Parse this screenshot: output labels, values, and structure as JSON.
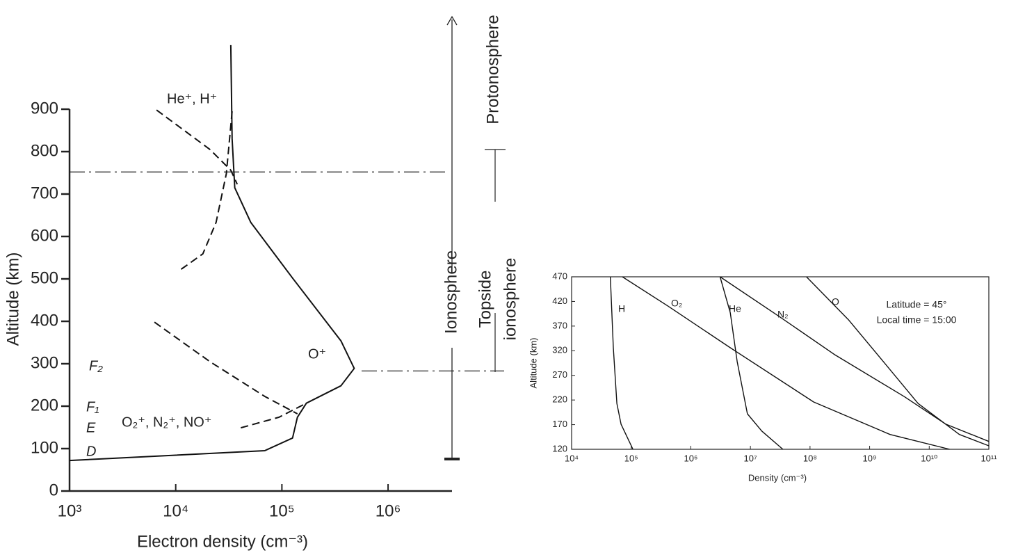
{
  "chart_data": [
    {
      "type": "line",
      "xscale": "log",
      "frame": false,
      "xlabel": "Electron density (cm⁻³)",
      "ylabel": "Altitude (km)",
      "xlim": [
        1000,
        4000000
      ],
      "ylim": [
        0,
        900
      ],
      "xticks": [
        {
          "value": 1000,
          "label": "10³"
        },
        {
          "value": 10000,
          "label": "10⁴"
        },
        {
          "value": 100000,
          "label": "10⁵"
        },
        {
          "value": 1000000,
          "label": "10⁶"
        }
      ],
      "yticks": [
        0,
        100,
        200,
        300,
        400,
        500,
        600,
        700,
        800,
        900
      ],
      "series": [
        {
          "color": "#111",
          "linestyle": "solid",
          "x": [
            1000,
            69000,
            126000,
            140000,
            170000,
            360000,
            480000,
            360000,
            126000,
            51000,
            36000,
            34000,
            33000
          ],
          "values": [
            72,
            95,
            125,
            174,
            207,
            248,
            289,
            354,
            502,
            633,
            715,
            830,
            1051
          ]
        },
        {
          "color": "#111",
          "linestyle": "dashed",
          "x": [
            6600,
            21000,
            33000,
            38000
          ],
          "values": [
            898,
            805,
            756,
            723
          ]
        },
        {
          "color": "#111",
          "linestyle": "dashed",
          "x": [
            34000,
            30000,
            24000,
            18000,
            11000
          ],
          "values": [
            895,
            748,
            633,
            559,
            521
          ]
        },
        {
          "color": "#111",
          "linestyle": "dashed",
          "x": [
            6300,
            21000,
            69000,
            140000
          ],
          "values": [
            398,
            305,
            223,
            182
          ]
        },
        {
          "color": "#111",
          "linestyle": "dashed",
          "x": [
            41000,
            94000,
            170000
          ],
          "values": [
            149,
            174,
            207
          ]
        }
      ],
      "hlines": [
        752,
        283
      ],
      "annotations": [
        "He⁺, H⁺",
        "O⁺",
        "O₂⁺, N₂⁺, NO⁺",
        "F₂",
        "F₁",
        "E",
        "D",
        "Ionosphere",
        "Protonosphere",
        "Topside",
        "ionosphere"
      ]
    },
    {
      "type": "line",
      "xscale": "log",
      "frame": true,
      "xlabel": "Density (cm⁻³)",
      "ylabel": "Altitude (km)",
      "xlim": [
        10000,
        100000000000
      ],
      "ylim": [
        120,
        470
      ],
      "xticks": [
        {
          "value": 10000,
          "label": "10⁴"
        },
        {
          "value": 100000,
          "label": "10⁵"
        },
        {
          "value": 1000000,
          "label": "10⁶"
        },
        {
          "value": 10000000,
          "label": "10⁷"
        },
        {
          "value": 100000000,
          "label": "10⁸"
        },
        {
          "value": 1000000000,
          "label": "10⁹"
        },
        {
          "value": 10000000000,
          "label": "10¹⁰"
        },
        {
          "value": 100000000000,
          "label": "10¹¹"
        }
      ],
      "yticks": [
        120,
        170,
        220,
        270,
        320,
        370,
        420,
        470
      ],
      "series": [
        {
          "name": "H",
          "color": "#111",
          "linestyle": "solid",
          "x": [
            44700,
            50100,
            57500,
            67600,
            107000
          ],
          "values": [
            470,
            326,
            213,
            171,
            120
          ]
        },
        {
          "name": "O₂",
          "color": "#111",
          "linestyle": "solid",
          "x": [
            71000,
            410000,
            4600000,
            115000000,
            2200000000,
            22000000000
          ],
          "values": [
            470,
            411,
            326,
            216,
            150,
            120
          ]
        },
        {
          "name": "He",
          "color": "#111",
          "linestyle": "solid",
          "x": [
            3100000,
            4600000,
            6000000,
            8900000,
            15500000,
            35000000
          ],
          "values": [
            470,
            397,
            298,
            192,
            157,
            120
          ]
        },
        {
          "name": "N₂",
          "color": "#111",
          "linestyle": "solid",
          "x": [
            3100000,
            30000000,
            260000000,
            3800000000,
            19000000000,
            100000000000
          ],
          "values": [
            470,
            390,
            312,
            227,
            171,
            136
          ]
        },
        {
          "name": "O",
          "color": "#111",
          "linestyle": "solid",
          "x": [
            87000000,
            440000000,
            1700000000,
            6500000000,
            32000000000,
            100000000000
          ],
          "values": [
            470,
            383,
            298,
            213,
            150,
            127
          ]
        }
      ],
      "annotations": [
        "Latitude = 45°",
        "Local time = 15:00"
      ]
    }
  ]
}
